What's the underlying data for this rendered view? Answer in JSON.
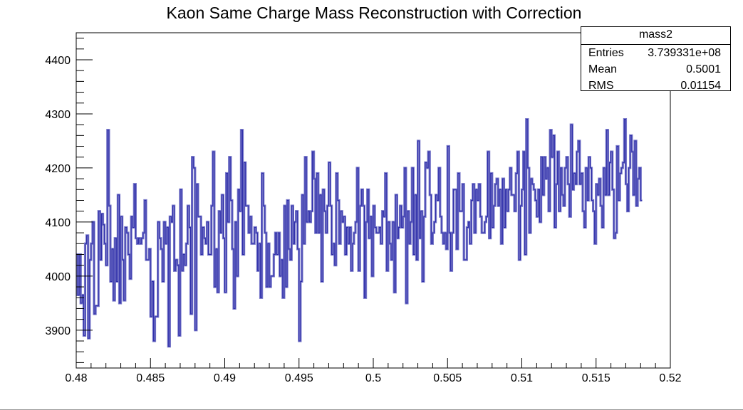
{
  "chart_data": {
    "type": "line",
    "title": "Kaon Same Charge Mass Reconstruction with Correction",
    "xlabel": "",
    "ylabel": "",
    "xlim": [
      0.48,
      0.52
    ],
    "ylim": [
      3830,
      4450
    ],
    "x_ticks": [
      "0.48",
      "0.485",
      "0.49",
      "0.495",
      "0.5",
      "0.505",
      "0.51",
      "0.515",
      "0.52"
    ],
    "y_ticks": [
      "3900",
      "4000",
      "4100",
      "4200",
      "4300",
      "4400"
    ],
    "line_color": "#2b2ba8",
    "fill_color": "#7777c8",
    "grid": false,
    "series": [
      {
        "x_start": 0.48,
        "bin_width": 0.0001,
        "values": [
          4040,
          3965,
          4040,
          3950,
          3965,
          3890,
          4060,
          4075,
          3885,
          4030,
          4060,
          4100,
          3930,
          3945,
          3945,
          4120,
          4030,
          4115,
          4095,
          4060,
          4020,
          4270,
          4130,
          3990,
          4050,
          3955,
          4070,
          3990,
          4150,
          3950,
          4110,
          4030,
          3955,
          4090,
          4080,
          4040,
          3995,
          4110,
          4090,
          4170,
          4070,
          4060,
          4070,
          4060,
          4070,
          4080,
          4140,
          4030,
          4030,
          4050,
          3925,
          3990,
          3880,
          3925,
          3925,
          4100,
          4070,
          4050,
          3990,
          4100,
          4060,
          4090,
          3870,
          4110,
          4100,
          4130,
          4010,
          4030,
          4020,
          3890,
          4160,
          4010,
          4040,
          4020,
          4060,
          4130,
          4090,
          3930,
          4220,
          4200,
          3900,
          4170,
          4110,
          4110,
          4040,
          4090,
          4070,
          4060,
          4100,
          4040,
          4040,
          4130,
          4230,
          3980,
          4050,
          3970,
          4120,
          4080,
          4150,
          4070,
          3970,
          4190,
          4100,
          4220,
          4140,
          4050,
          3940,
          4100,
          4000,
          4160,
          4120,
          4270,
          4040,
          4210,
          4130,
          4130,
          4080,
          4110,
          4060,
          4060,
          4090,
          4080,
          4010,
          4060,
          3960,
          4190,
          4130,
          4080,
          3980,
          4060,
          3980,
          4000,
          4000,
          4040,
          4080,
          4040,
          4080,
          4000,
          4030,
          3960,
          4130,
          3980,
          4140,
          4050,
          4030,
          4130,
          4060,
          4100,
          4120,
          4050,
          3880,
          3990,
          4150,
          4060,
          4220,
          4100,
          4120,
          4100,
          4120,
          4230,
          4180,
          4080,
          4190,
          4080,
          4150,
          3990,
          4160,
          4120,
          4080,
          4130,
          4210,
          4130,
          4040,
          4060,
          4020,
          4190,
          4140,
          4060,
          4120,
          4100,
          4110,
          4040,
          4090,
          4060,
          4090,
          4010,
          4060,
          4080,
          4100,
          4200,
          4010,
          4130,
          4160,
          4130,
          3960,
          4100,
          4160,
          4070,
          4110,
          4000,
          4130,
          4090,
          4080,
          4080,
          4090,
          4060,
          4120,
          4110,
          4190,
          4010,
          4100,
          4060,
          4030,
          4100,
          3970,
          4150,
          4070,
          4090,
          4130,
          4090,
          4110,
          4200,
          3950,
          4120,
          4060,
          4100,
          4200,
          4040,
          4150,
          4030,
          4250,
          4070,
          4120,
          3990,
          4110,
          4210,
          4200,
          4230,
          4150,
          4060,
          4080,
          4100,
          4150,
          4140,
          4200,
          4110,
          4080,
          4060,
          4080,
          4050,
          4240,
          4080,
          4010,
          4080,
          4160,
          4160,
          4050,
          4190,
          4120,
          4120,
          4170,
          4030,
          4030,
          4090,
          4100,
          4060,
          4140,
          4170,
          4080,
          4160,
          4140,
          4170,
          4110,
          4080,
          4080,
          4100,
          4110,
          4230,
          4070,
          4190,
          4090,
          4130,
          4170,
          4180,
          4130,
          4160,
          4060,
          4180,
          4090,
          4160,
          4120,
          4160,
          4200,
          4150,
          4150,
          4120,
          4190,
          4230,
          4030,
          4130,
          4160,
          4230,
          4040,
          4290,
          4200,
          4080,
          4180,
          4170,
          4160,
          4140,
          4110,
          4160,
          4100,
          4220,
          4150,
          4220,
          4180,
          4200,
          4120,
          4270,
          4220,
          4260,
          4090,
          4170,
          4230,
          4120,
          4200,
          4150,
          4130,
          4200,
          4220,
          4170,
          4110,
          4280,
          4160,
          4190,
          4170,
          4230,
          4250,
          4170,
          4190,
          4120,
          4090,
          4200,
          4140,
          4220,
          4200,
          4140,
          4120,
          4060,
          4170,
          4150,
          4180,
          4130,
          4090,
          4200,
          4150,
          4270,
          4150,
          4210,
          4230,
          4160,
          4070,
          4080,
          4240,
          4140,
          4190,
          4200,
          4210,
          4290,
          4170,
          4120,
          4200,
          4260,
          4230,
          4150,
          4250,
          4130,
          4180,
          4200,
          4140
        ]
      }
    ]
  },
  "stats_box": {
    "title": "mass2",
    "entries_label": "Entries",
    "entries_value": "3.739331e+08",
    "mean_label": "Mean",
    "mean_value": "0.5001",
    "rms_label": "RMS",
    "rms_value": "0.01154"
  }
}
